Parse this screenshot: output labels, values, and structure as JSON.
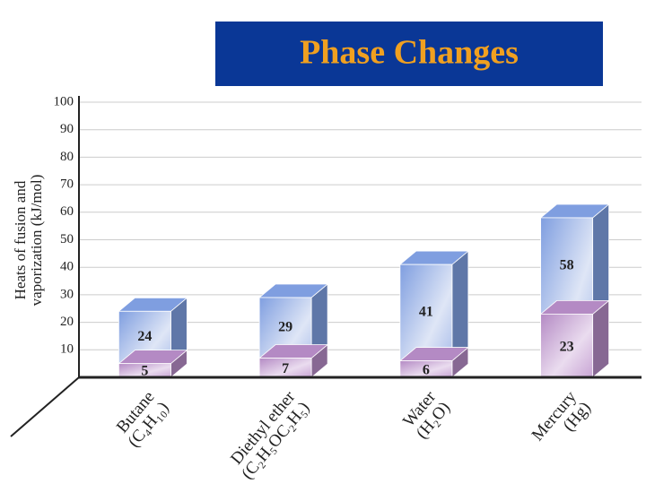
{
  "chart_data": {
    "type": "bar3d",
    "title": "Phase Changes",
    "ylabel": [
      "Heats of fusion and",
      "vaporization (kJ/mol)"
    ],
    "categories": [
      "Butane",
      "Diethyl ether",
      "Water",
      "Mercury"
    ],
    "formulas": [
      "(C₄H₁₀)",
      "(C₂H₅OC₂H₅)",
      "(H₂O)",
      "(Hg)"
    ],
    "series": [
      {
        "color": "#7f9ee0",
        "values": [
          24,
          29,
          41,
          58
        ]
      },
      {
        "color": "#b48ac4",
        "values": [
          5,
          7,
          6,
          23
        ]
      }
    ],
    "ylim": [
      0,
      100
    ],
    "yticks": [
      10,
      20,
      30,
      40,
      50,
      60,
      70,
      80,
      90,
      100
    ],
    "grid": true
  }
}
